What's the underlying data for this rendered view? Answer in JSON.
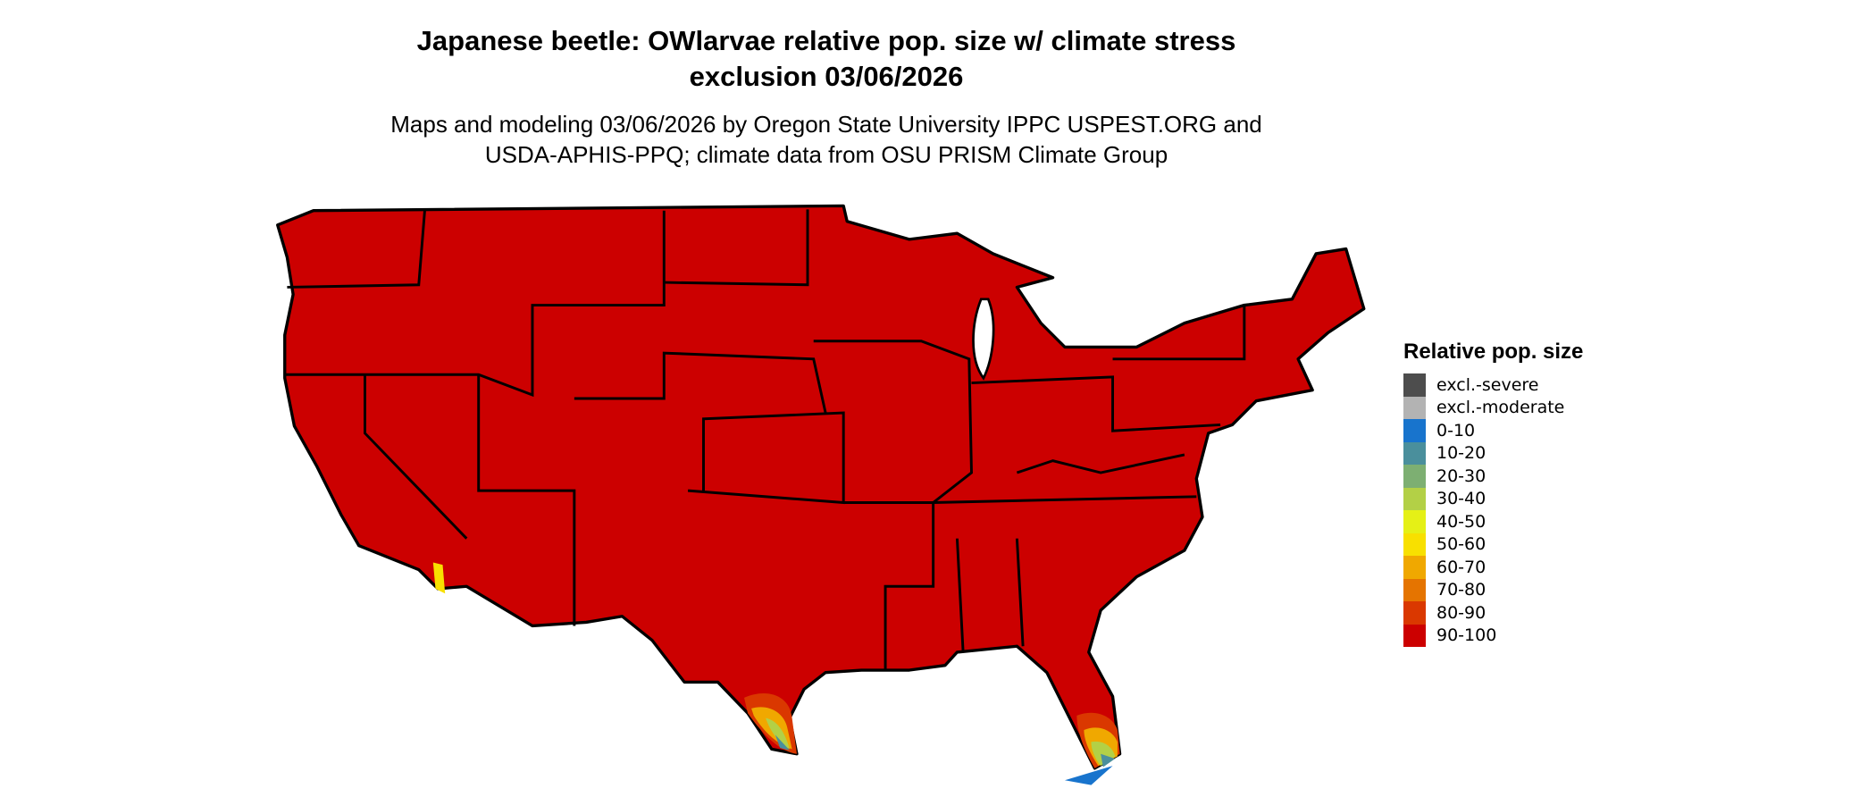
{
  "title": {
    "line1": "Japanese beetle: OWlarvae relative pop. size w/ climate stress",
    "line2": "exclusion 03/06/2026"
  },
  "subtitle": {
    "line1": "Maps and modeling 03/06/2026 by Oregon State University IPPC USPEST.ORG and",
    "line2": "USDA-APHIS-PPQ; climate data from OSU PRISM Climate Group"
  },
  "map": {
    "region": "Contiguous United States",
    "dominant_class": "90-100",
    "fill_color": "#CC0000",
    "border_color": "#000000"
  },
  "legend": {
    "title": "Relative pop. size",
    "items": [
      {
        "label": "excl.-severe",
        "color": "#4D4D4D"
      },
      {
        "label": "excl.-moderate",
        "color": "#B3B3B3"
      },
      {
        "label": "0-10",
        "color": "#1874CD"
      },
      {
        "label": "10-20",
        "color": "#4A8F9C"
      },
      {
        "label": "20-30",
        "color": "#7DAF72"
      },
      {
        "label": "30-40",
        "color": "#B3D046"
      },
      {
        "label": "40-50",
        "color": "#E5F016"
      },
      {
        "label": "50-60",
        "color": "#F8E000"
      },
      {
        "label": "60-70",
        "color": "#F0A800"
      },
      {
        "label": "70-80",
        "color": "#E57400"
      },
      {
        "label": "80-90",
        "color": "#DA3800"
      },
      {
        "label": "90-100",
        "color": "#CC0000"
      }
    ]
  }
}
